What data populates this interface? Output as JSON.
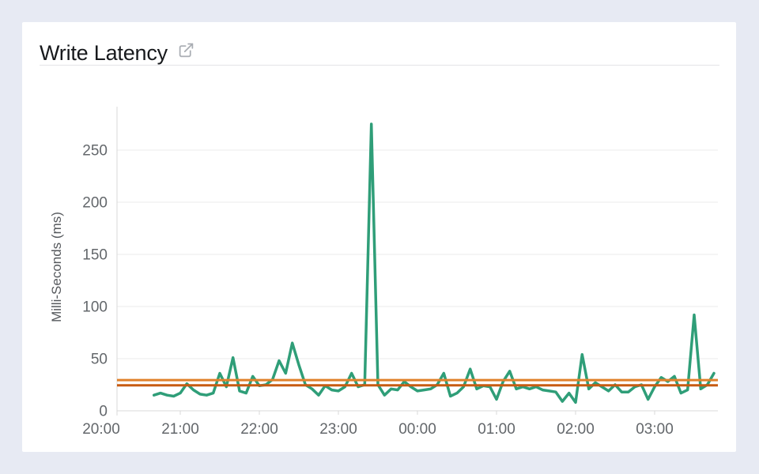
{
  "page": {
    "background": "#e7eaf3",
    "card_background": "#ffffff"
  },
  "header": {
    "title": "Write Latency",
    "action_icon": "external-link-icon"
  },
  "colors": {
    "grid": "#ebebeb",
    "axis": "#d9d9d9",
    "tick_text": "#63676b",
    "divider": "#e3e3e7",
    "icon": "#a9adb3",
    "series_green": "#2f9e78",
    "reference_upper": "#e0812b",
    "reference_lower": "#c75b12"
  },
  "chart_data": {
    "type": "line",
    "title": "Write Latency",
    "xlabel": "",
    "ylabel": "Milli-Seconds (ms)",
    "y_ticks": [
      0,
      50,
      100,
      150,
      200,
      250
    ],
    "x_ticks": [
      "20:00",
      "21:00",
      "22:00",
      "23:00",
      "00:00",
      "01:00",
      "02:00",
      "03:00"
    ],
    "ylim": [
      0,
      292
    ],
    "x_range": [
      "20:00",
      "03:48"
    ],
    "grid": true,
    "legend": "none",
    "series": [
      {
        "name": "Write Latency",
        "color": "#2f9e78",
        "points": [
          [
            "20:40",
            15
          ],
          [
            "20:45",
            17
          ],
          [
            "20:50",
            15
          ],
          [
            "20:55",
            14
          ],
          [
            "21:00",
            17
          ],
          [
            "21:05",
            26
          ],
          [
            "21:10",
            20
          ],
          [
            "21:15",
            16
          ],
          [
            "21:20",
            15
          ],
          [
            "21:25",
            17
          ],
          [
            "21:30",
            36
          ],
          [
            "21:35",
            23
          ],
          [
            "21:40",
            51
          ],
          [
            "21:45",
            19
          ],
          [
            "21:50",
            17
          ],
          [
            "21:55",
            33
          ],
          [
            "22:00",
            24
          ],
          [
            "22:05",
            25
          ],
          [
            "22:10",
            30
          ],
          [
            "22:15",
            48
          ],
          [
            "22:20",
            36
          ],
          [
            "22:25",
            65
          ],
          [
            "22:30",
            44
          ],
          [
            "22:35",
            25
          ],
          [
            "22:40",
            21
          ],
          [
            "22:45",
            15
          ],
          [
            "22:50",
            24
          ],
          [
            "22:55",
            20
          ],
          [
            "23:00",
            19
          ],
          [
            "23:05",
            23
          ],
          [
            "23:10",
            36
          ],
          [
            "23:15",
            23
          ],
          [
            "23:20",
            25
          ],
          [
            "23:25",
            275
          ],
          [
            "23:30",
            25
          ],
          [
            "23:35",
            15
          ],
          [
            "23:40",
            21
          ],
          [
            "23:45",
            20
          ],
          [
            "23:50",
            28
          ],
          [
            "23:55",
            23
          ],
          [
            "00:00",
            19
          ],
          [
            "00:05",
            20
          ],
          [
            "00:10",
            21
          ],
          [
            "00:15",
            25
          ],
          [
            "00:20",
            36
          ],
          [
            "00:25",
            14
          ],
          [
            "00:30",
            17
          ],
          [
            "00:35",
            23
          ],
          [
            "00:40",
            40
          ],
          [
            "00:45",
            21
          ],
          [
            "00:50",
            24
          ],
          [
            "00:55",
            23
          ],
          [
            "01:00",
            11
          ],
          [
            "01:05",
            28
          ],
          [
            "01:10",
            38
          ],
          [
            "01:15",
            21
          ],
          [
            "01:20",
            23
          ],
          [
            "01:25",
            21
          ],
          [
            "01:30",
            23
          ],
          [
            "01:35",
            20
          ],
          [
            "01:40",
            19
          ],
          [
            "01:45",
            18
          ],
          [
            "01:50",
            9
          ],
          [
            "01:55",
            17
          ],
          [
            "02:00",
            8
          ],
          [
            "02:05",
            54
          ],
          [
            "02:10",
            21
          ],
          [
            "02:15",
            27
          ],
          [
            "02:20",
            23
          ],
          [
            "02:25",
            19
          ],
          [
            "02:30",
            25
          ],
          [
            "02:35",
            18
          ],
          [
            "02:40",
            18
          ],
          [
            "02:45",
            23
          ],
          [
            "02:50",
            25
          ],
          [
            "02:55",
            11
          ],
          [
            "03:00",
            23
          ],
          [
            "03:05",
            32
          ],
          [
            "03:10",
            28
          ],
          [
            "03:15",
            33
          ],
          [
            "03:20",
            17
          ],
          [
            "03:25",
            20
          ],
          [
            "03:30",
            92
          ],
          [
            "03:35",
            21
          ],
          [
            "03:40",
            25
          ],
          [
            "03:45",
            36
          ]
        ]
      }
    ],
    "reference_lines": [
      {
        "name": "upper-threshold",
        "value": 29.5,
        "color": "#e0812b"
      },
      {
        "name": "lower-threshold",
        "value": 24.5,
        "color": "#c75b12"
      }
    ]
  }
}
